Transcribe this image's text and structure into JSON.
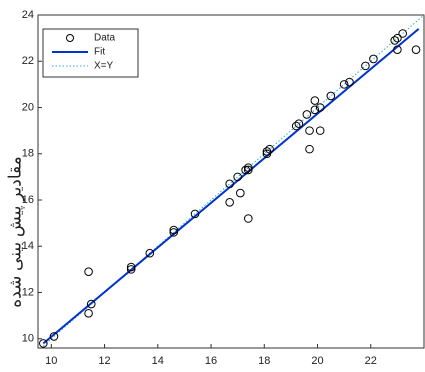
{
  "chart_data": {
    "type": "scatter",
    "ylabel": "مقادیر پیش بینی شده",
    "xlim": [
      9.5,
      24
    ],
    "ylim": [
      9.6,
      24
    ],
    "xticks": [
      10,
      12,
      14,
      16,
      18,
      20,
      22
    ],
    "yticks": [
      10,
      12,
      14,
      16,
      18,
      20,
      22,
      24
    ],
    "legend": "top-left",
    "series": [
      {
        "name": "Data",
        "color": "#000000",
        "kind": "marker",
        "x": [
          9.7,
          10.1,
          11.4,
          11.5,
          11.4,
          13,
          13,
          13.7,
          14.6,
          14.6,
          15.4,
          16.7,
          16.7,
          17,
          17.1,
          17.3,
          17.4,
          17.4,
          17.4,
          18.1,
          18.2,
          18.1,
          19.2,
          19.3,
          19.6,
          19.7,
          19.7,
          19.9,
          19.9,
          20.1,
          20.1,
          20.5,
          21,
          21.2,
          21.8,
          22.1,
          23,
          23,
          23.2,
          23.7,
          22.9
        ],
        "y": [
          9.8,
          10.1,
          12.9,
          11.5,
          11.1,
          13.0,
          13.1,
          13.7,
          14.6,
          14.7,
          15.4,
          15.9,
          16.7,
          17,
          16.3,
          17.3,
          17.4,
          15.2,
          17.3,
          18.1,
          18.2,
          18.0,
          19.2,
          19.3,
          19.7,
          19.0,
          18.2,
          19.9,
          20.3,
          19.0,
          20.0,
          20.5,
          21,
          21.1,
          21.8,
          22.1,
          23,
          22.5,
          23.2,
          22.5,
          22.9
        ]
      },
      {
        "name": "Fit",
        "color": "#0033cc",
        "kind": "line",
        "x": [
          9.7,
          23.8
        ],
        "y": [
          9.8,
          23.4
        ]
      },
      {
        "name": "X=Y",
        "color": "#33aacc",
        "kind": "dotted",
        "x": [
          9.5,
          24
        ],
        "y": [
          9.5,
          24
        ]
      }
    ]
  }
}
